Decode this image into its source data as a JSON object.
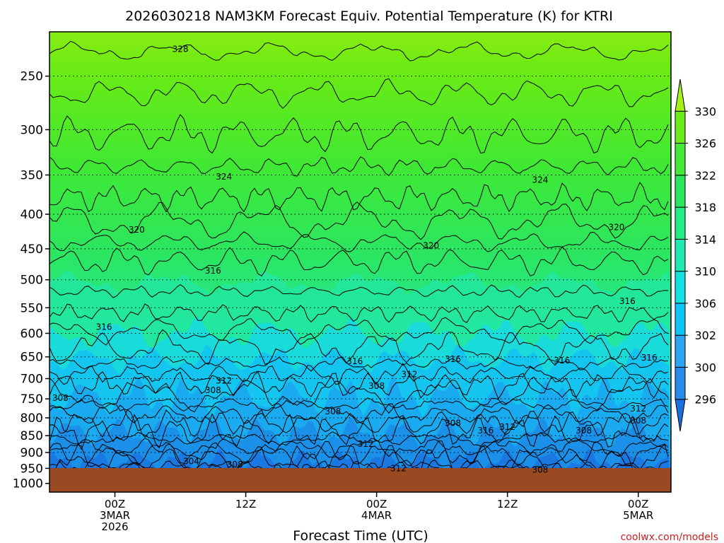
{
  "chart_data": {
    "type": "heatmap",
    "title": "2026030218 NAM3KM Forecast Equiv. Potential Temperature (K) for KTRI",
    "xlabel": "Forecast Time (UTC)",
    "ylabel": "",
    "y_scale": "log-pressure",
    "y_reversed": true,
    "ylim": [
      1030,
      215
    ],
    "y_ticks": [
      250,
      300,
      350,
      400,
      450,
      500,
      550,
      600,
      650,
      700,
      750,
      800,
      850,
      900,
      950,
      1000
    ],
    "y_tick_labels": [
      "250",
      "300",
      "350",
      "400",
      "450",
      "500",
      "550",
      "600",
      "650",
      "700",
      "750",
      "800",
      "850",
      "900",
      "950",
      "1000"
    ],
    "xlim": [
      "2026-03-02T18:00Z",
      "2026-03-05T03:00Z"
    ],
    "x_ticks": [
      {
        "time": "2026-03-03T00:00Z",
        "lines": [
          "00Z",
          "3MAR",
          "2026"
        ]
      },
      {
        "time": "2026-03-03T12:00Z",
        "lines": [
          "12Z"
        ]
      },
      {
        "time": "2026-03-04T00:00Z",
        "lines": [
          "00Z",
          "4MAR"
        ]
      },
      {
        "time": "2026-03-04T12:00Z",
        "lines": [
          "12Z"
        ]
      },
      {
        "time": "2026-03-05T00:00Z",
        "lines": [
          "00Z",
          "5MAR"
        ]
      }
    ],
    "grid": {
      "horizontal_dotted": true,
      "vertical": false
    },
    "colorbar": {
      "placement": "right",
      "levels": [
        296,
        300,
        302,
        306,
        310,
        314,
        318,
        322,
        326,
        330
      ],
      "labels": [
        "296",
        "300",
        "302",
        "306",
        "310",
        "314",
        "318",
        "322",
        "326",
        "330"
      ],
      "colors": [
        "#1a6fdf",
        "#2a8ae8",
        "#2ea4f0",
        "#10c4f5",
        "#16e0e0",
        "#1fe8b0",
        "#25ec84",
        "#2ce65e",
        "#48e83a",
        "#6ceb1c",
        "#a4f01a"
      ]
    },
    "terrain_color": "#9a4a22",
    "contour_labels": [
      {
        "value": "328",
        "time": "2026-03-03T06:00Z",
        "pressure": 228
      },
      {
        "value": "324",
        "time": "2026-03-03T10:00Z",
        "pressure": 352
      },
      {
        "value": "324",
        "time": "2026-03-04T15:00Z",
        "pressure": 356
      },
      {
        "value": "320",
        "time": "2026-03-03T02:00Z",
        "pressure": 422
      },
      {
        "value": "320",
        "time": "2026-03-04T05:00Z",
        "pressure": 445
      },
      {
        "value": "320",
        "time": "2026-03-04T22:00Z",
        "pressure": 418
      },
      {
        "value": "316",
        "time": "2026-03-03T09:00Z",
        "pressure": 485
      },
      {
        "value": "316",
        "time": "2026-03-02T23:00Z",
        "pressure": 587
      },
      {
        "value": "316",
        "time": "2026-03-03T22:00Z",
        "pressure": 660
      },
      {
        "value": "316",
        "time": "2026-03-04T07:00Z",
        "pressure": 655
      },
      {
        "value": "316",
        "time": "2026-03-04T17:00Z",
        "pressure": 658
      },
      {
        "value": "316",
        "time": "2026-03-04T23:00Z",
        "pressure": 538
      },
      {
        "value": "316",
        "time": "2026-03-05T01:00Z",
        "pressure": 652
      },
      {
        "value": "316",
        "time": "2026-03-04T10:00Z",
        "pressure": 835
      },
      {
        "value": "312",
        "time": "2026-03-03T10:00Z",
        "pressure": 705
      },
      {
        "value": "312",
        "time": "2026-03-04T03:00Z",
        "pressure": 690
      },
      {
        "value": "312",
        "time": "2026-03-03T23:00Z",
        "pressure": 875
      },
      {
        "value": "312",
        "time": "2026-03-04T12:00Z",
        "pressure": 825
      },
      {
        "value": "312",
        "time": "2026-03-04T02:00Z",
        "pressure": 950
      },
      {
        "value": "312",
        "time": "2026-03-05T00:00Z",
        "pressure": 775
      },
      {
        "value": "308",
        "time": "2026-03-02T19:00Z",
        "pressure": 748
      },
      {
        "value": "308",
        "time": "2026-03-03T09:00Z",
        "pressure": 728
      },
      {
        "value": "308",
        "time": "2026-03-03T20:00Z",
        "pressure": 783
      },
      {
        "value": "308",
        "time": "2026-03-04T00:00Z",
        "pressure": 718
      },
      {
        "value": "308",
        "time": "2026-03-04T07:00Z",
        "pressure": 815
      },
      {
        "value": "308",
        "time": "2026-03-04T19:00Z",
        "pressure": 835
      },
      {
        "value": "308",
        "time": "2026-03-05T00:00Z",
        "pressure": 808
      },
      {
        "value": "308",
        "time": "2026-03-03T11:00Z",
        "pressure": 938
      },
      {
        "value": "308",
        "time": "2026-03-04T15:00Z",
        "pressure": 955
      },
      {
        "value": "304",
        "time": "2026-03-03T07:00Z",
        "pressure": 928
      }
    ]
  },
  "credit": "coolwx.com/models"
}
